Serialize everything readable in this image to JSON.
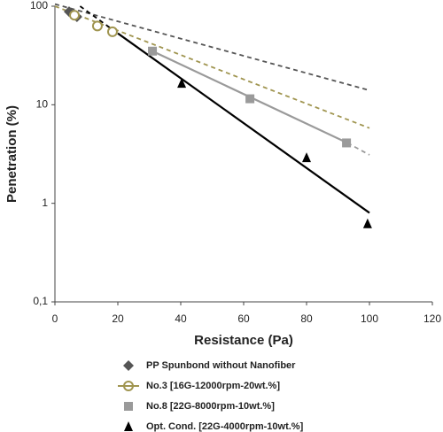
{
  "chart_data": {
    "type": "scatter",
    "x_label": "Resistance (Pa)",
    "y_label": "Penetration (%)",
    "xlim": [
      0,
      120
    ],
    "xticks": [
      0,
      20,
      40,
      60,
      80,
      100,
      120
    ],
    "ylim": [
      0.1,
      100
    ],
    "yticks": [
      {
        "value": 0.1,
        "label": "0,1"
      },
      1,
      10,
      100
    ],
    "log_y": true,
    "grid": false,
    "legend": "bottom",
    "series": [
      {
        "name": "PP Spunbond without Nanofiber",
        "color": "#555555",
        "marker": "diamond",
        "x": [
          4.5,
          7
        ],
        "values": [
          88,
          78
        ],
        "trend": [
          {
            "style": "dashed",
            "x": [
              0,
              100
            ],
            "values": [
              105,
              14
            ]
          }
        ]
      },
      {
        "name": "No.3 [16G-12000rpm-20wt.%]",
        "color": "#a09550",
        "marker": "open-circle",
        "x": [
          6.2,
          13.5,
          18.3
        ],
        "values": [
          81,
          63,
          55
        ],
        "trend": [
          {
            "style": "dashed",
            "x": [
              0,
              100
            ],
            "values": [
              100,
              5.8
            ]
          }
        ]
      },
      {
        "name": "No.8 [22G-8000rpm-10wt.%]",
        "color": "#9a9a9a",
        "marker": "square",
        "x": [
          31,
          62,
          92.7
        ],
        "values": [
          35,
          11.5,
          4.1
        ],
        "trend": [
          {
            "style": "solid",
            "x": [
              31,
              93
            ],
            "values": [
              35,
              4.1
            ]
          },
          {
            "style": "dashed",
            "x": [
              93,
              100
            ],
            "values": [
              4.1,
              3.1
            ]
          }
        ]
      },
      {
        "name": "Opt. Cond. [22G-4000rpm-10wt.%]",
        "color": "#000000",
        "marker": "triangle",
        "x": [
          40.3,
          80,
          99.4
        ],
        "values": [
          16.5,
          2.9,
          0.62
        ],
        "trend": [
          {
            "style": "dashed",
            "x": [
              8,
              20
            ],
            "values": [
              100,
              53
            ]
          },
          {
            "style": "solid",
            "x": [
              20,
              100
            ],
            "values": [
              53,
              0.8
            ]
          }
        ]
      }
    ]
  }
}
